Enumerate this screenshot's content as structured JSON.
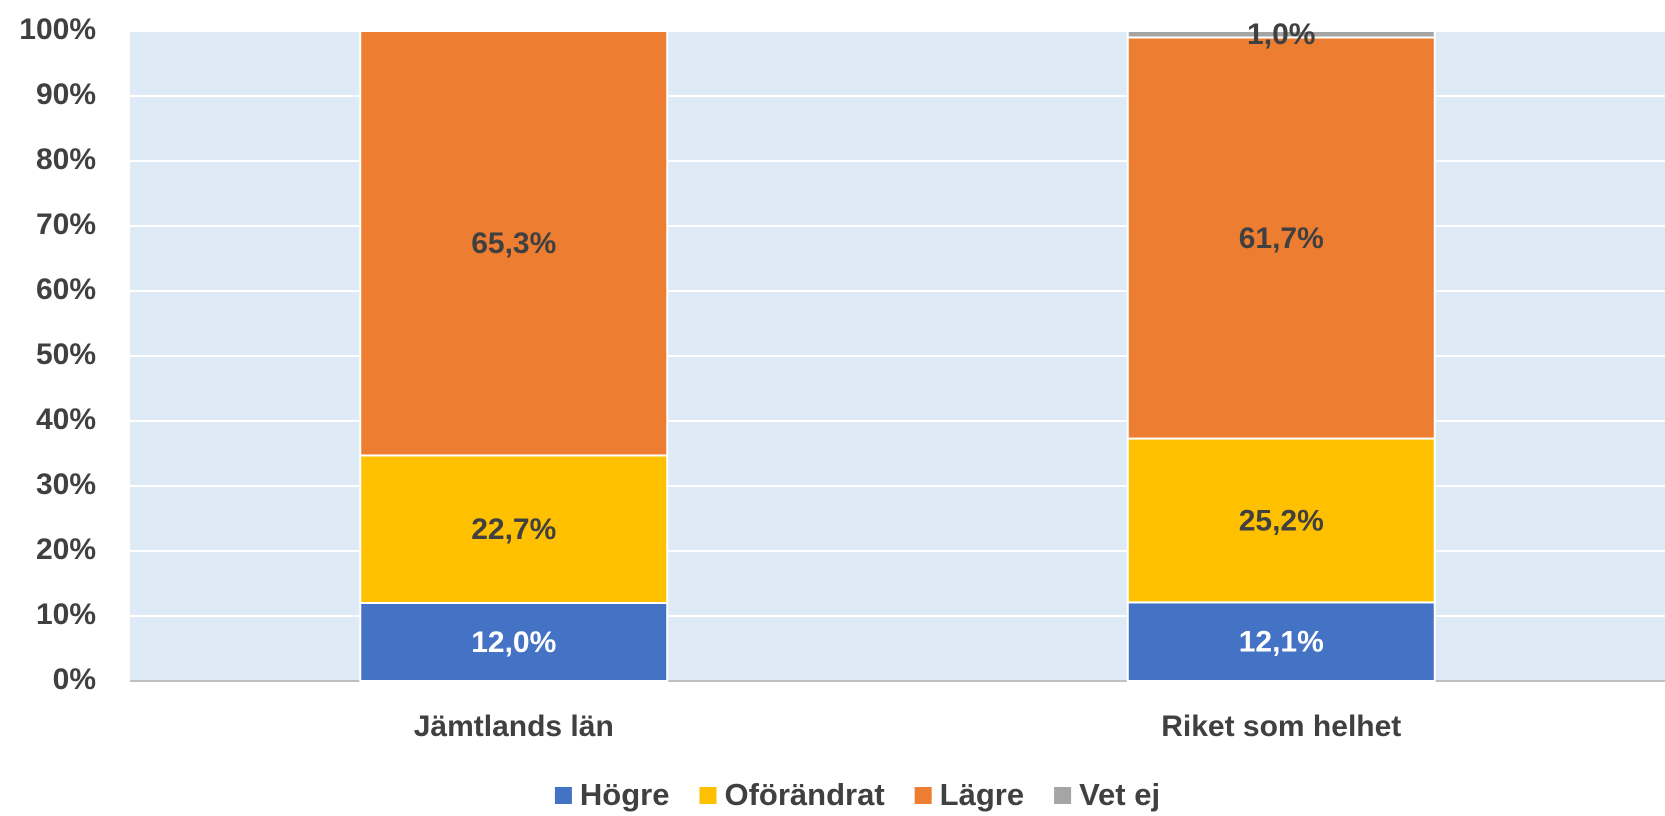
{
  "chart_data": {
    "type": "stacked_bar",
    "categories": [
      "Jämtlands län",
      "Riket som helhet"
    ],
    "series": [
      {
        "name": "Högre",
        "color": "#4472c4",
        "values": [
          12.0,
          12.1
        ],
        "value_labels": [
          "12,0%",
          "12,1%"
        ]
      },
      {
        "name": "Oförändrat",
        "color": "#ffc000",
        "values": [
          22.7,
          25.2
        ],
        "value_labels": [
          "22,7%",
          "25,2%"
        ]
      },
      {
        "name": "Lägre",
        "color": "#ed7d31",
        "values": [
          65.3,
          61.7
        ],
        "value_labels": [
          "65,3%",
          "61,7%"
        ]
      },
      {
        "name": "Vet ej",
        "color": "#a5a5a5",
        "values": [
          0,
          1.0
        ],
        "value_labels": [
          null,
          "1,0%"
        ]
      }
    ],
    "ylim": [
      0,
      100
    ],
    "yticks": [
      {
        "value": 0,
        "label": "0%"
      },
      {
        "value": 10,
        "label": "10%"
      },
      {
        "value": 20,
        "label": "20%"
      },
      {
        "value": 30,
        "label": "30%"
      },
      {
        "value": 40,
        "label": "40%"
      },
      {
        "value": 50,
        "label": "50%"
      },
      {
        "value": 60,
        "label": "60%"
      },
      {
        "value": 70,
        "label": "70%"
      },
      {
        "value": 80,
        "label": "80%"
      },
      {
        "value": 90,
        "label": "90%"
      },
      {
        "value": 100,
        "label": "100%"
      }
    ],
    "grid": true,
    "legend": "bottom"
  }
}
